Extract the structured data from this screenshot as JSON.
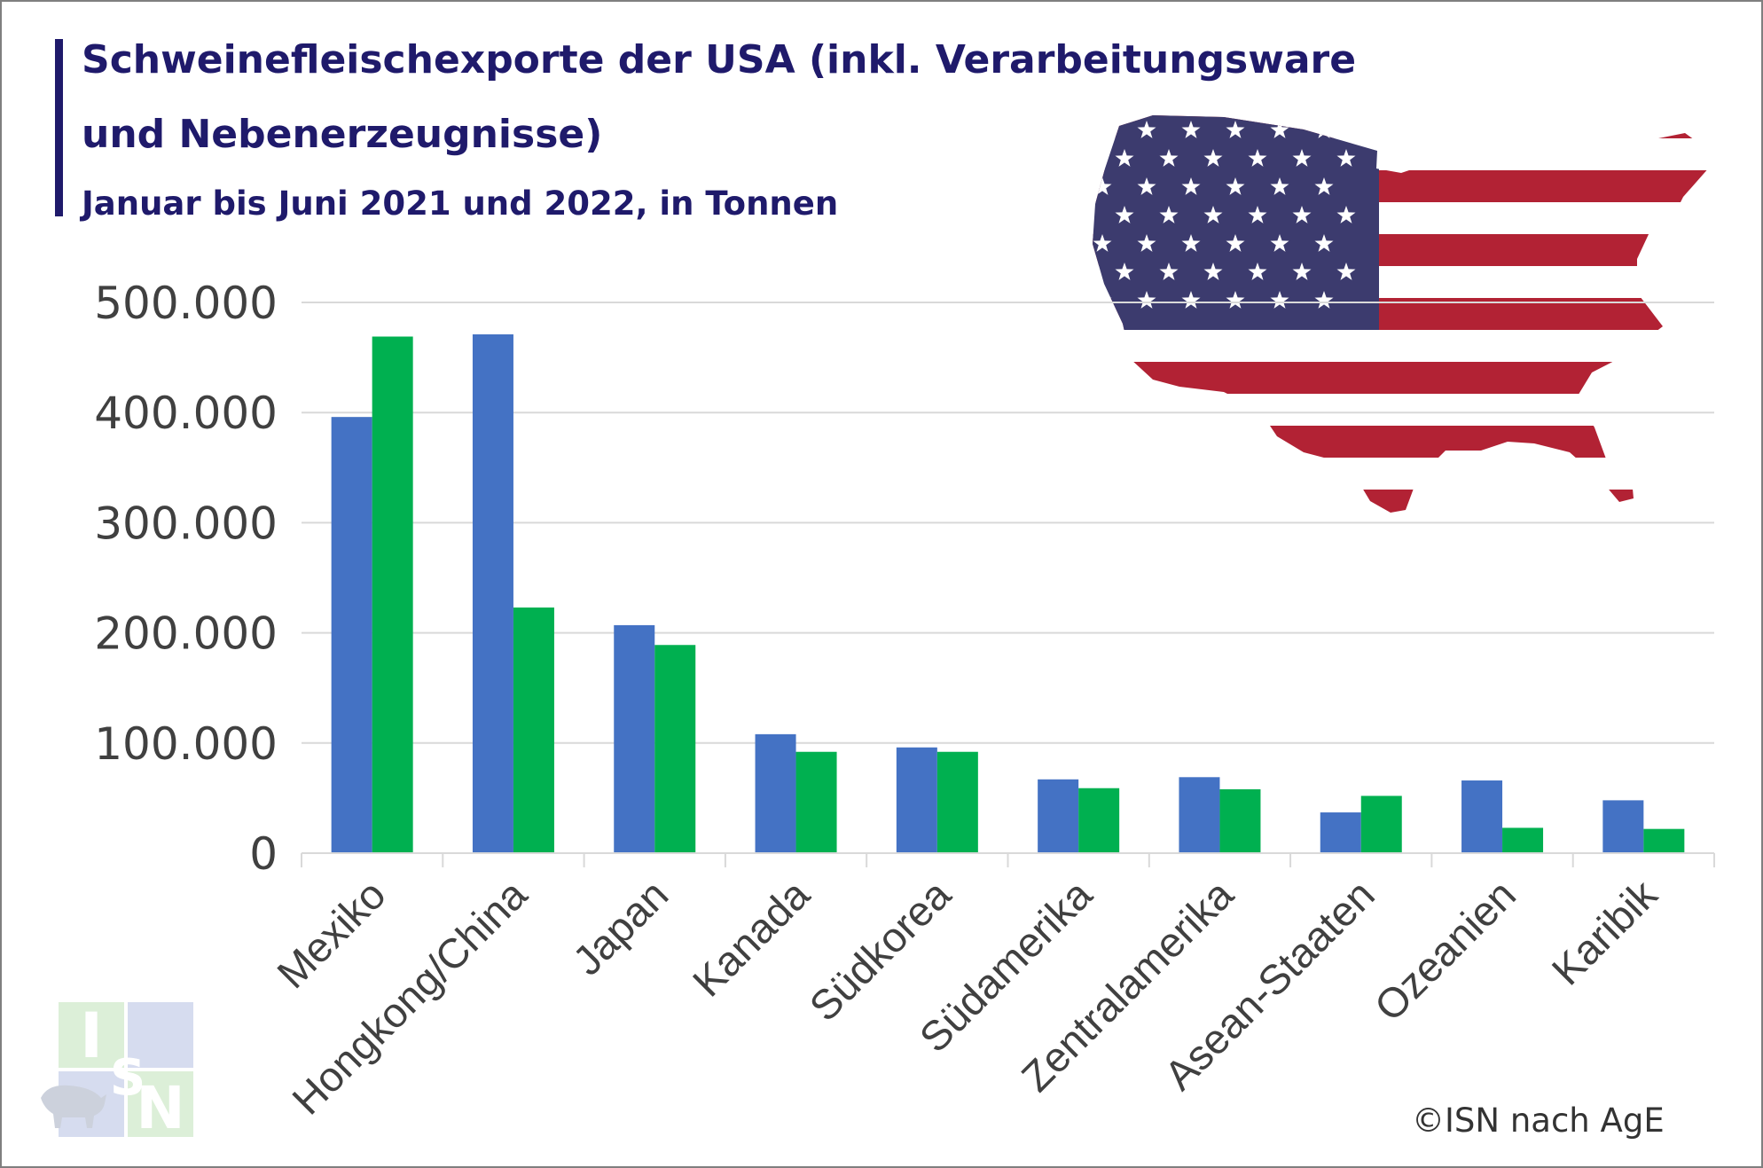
{
  "title_line1": "Schweinefleischexporte der USA (inkl. Verarbeitungsware",
  "title_line2": "und Nebenerzeugnisse)",
  "subtitle": "Januar bis Juni 2021 und 2022, in Tonnen",
  "credit": "©ISN nach AgE",
  "logo_text": "ISN",
  "colors": {
    "title": "#1f1a6b",
    "series_2021": "#4472c4",
    "series_2022": "#00b050",
    "grid": "#d9d9d9"
  },
  "decoration": {
    "flag_icon": "usa-flag-map-icon",
    "logo_icon": "isn-pig-logo-icon"
  },
  "chart_data": {
    "type": "bar",
    "categories": [
      "Mexiko",
      "Hongkong/China",
      "Japan",
      "Kanada",
      "Südkorea",
      "Südamerika",
      "Zentralamerika",
      "Asean-Staaten",
      "Ozeanien",
      "Karibik"
    ],
    "series": [
      {
        "values": [
          396000,
          471000,
          207000,
          108000,
          96000,
          67000,
          69000,
          37000,
          66000,
          48000
        ]
      },
      {
        "values": [
          469000,
          223000,
          189000,
          92000,
          92000,
          59000,
          58000,
          52000,
          23000,
          22000
        ]
      }
    ],
    "y_ticks": [
      "0",
      "100.000",
      "200.000",
      "300.000",
      "400.000",
      "500.000"
    ],
    "ylim": [
      0,
      500000
    ],
    "grid": true,
    "legend": "none"
  }
}
